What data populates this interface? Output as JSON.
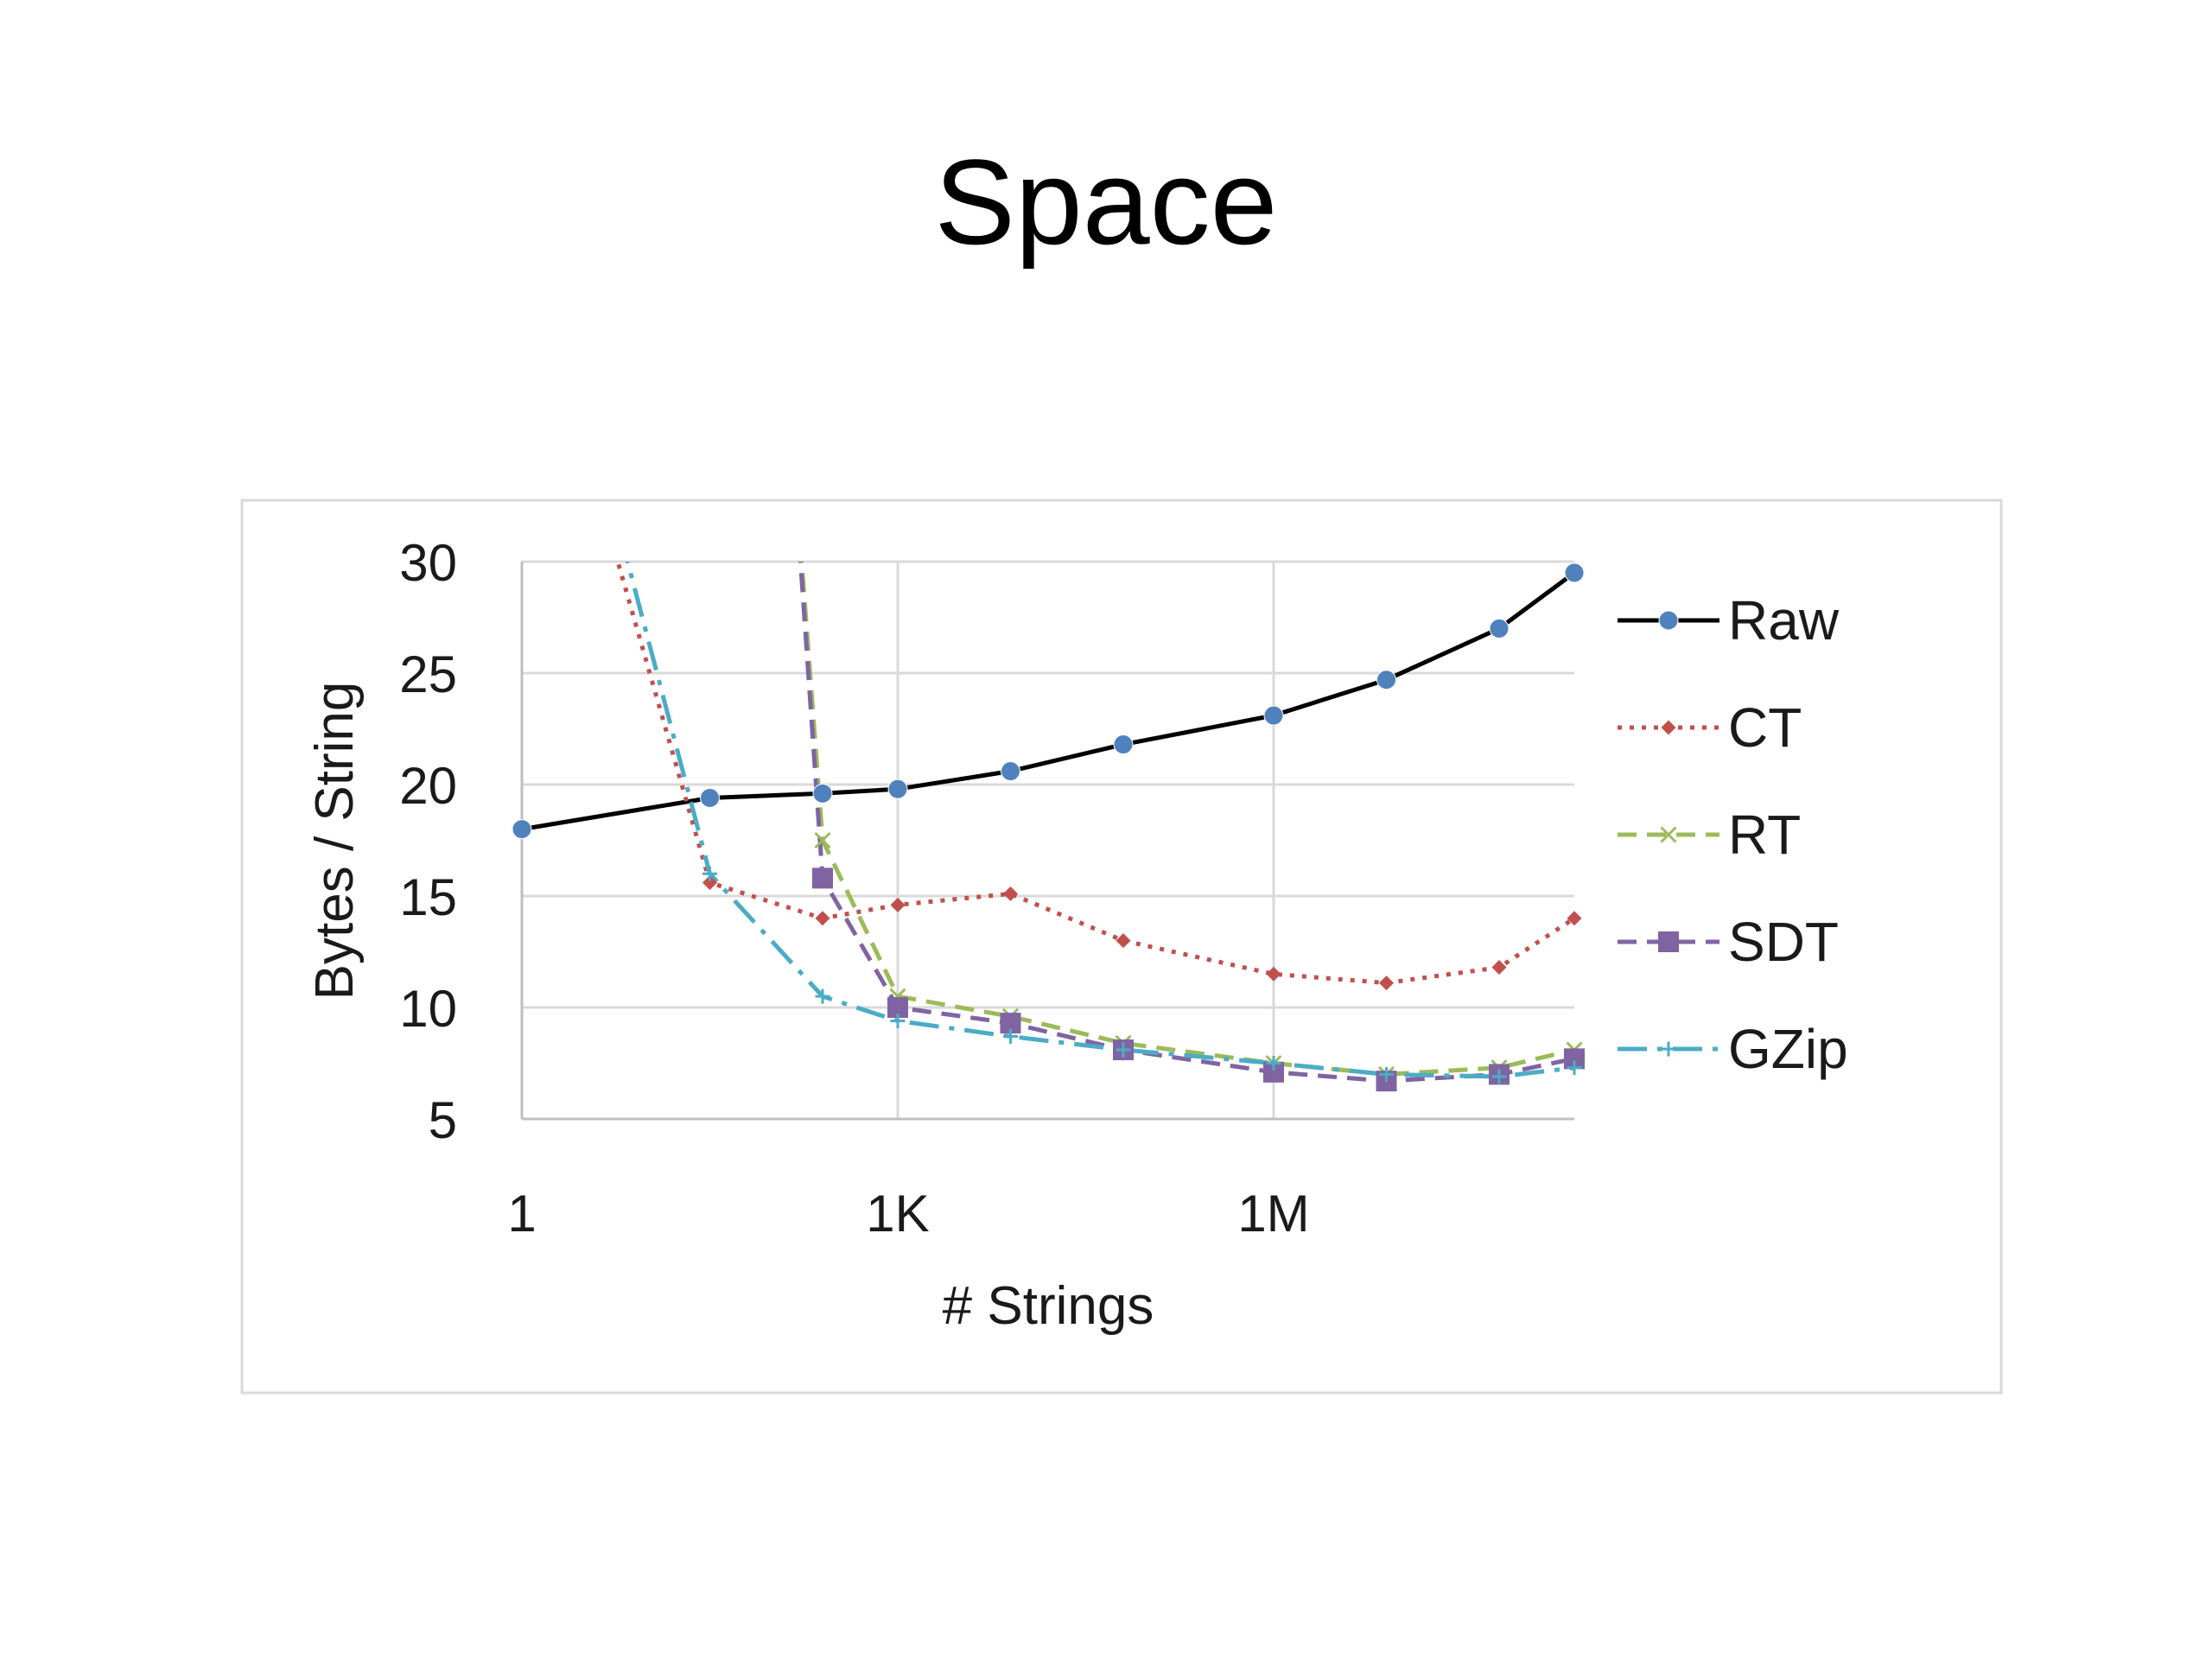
{
  "slide": {
    "title": "Space"
  },
  "chart_data": {
    "type": "line",
    "title": "",
    "xlabel": "# Strings",
    "ylabel": "Bytes / String",
    "x_scale": "log",
    "x": [
      1,
      32,
      256,
      1024,
      8192,
      65536,
      1048576,
      8388608,
      67108864,
      268435456
    ],
    "x_ticks": [
      {
        "value": 1,
        "label": "1"
      },
      {
        "value": 1024,
        "label": "1K"
      },
      {
        "value": 1048576,
        "label": "1M"
      }
    ],
    "xlim": [
      1,
      268435456
    ],
    "ylim": [
      5,
      30
    ],
    "y_ticks": [
      5,
      10,
      15,
      20,
      25,
      30
    ],
    "grid": true,
    "legend_position": "right",
    "series": [
      {
        "name": "Raw",
        "color": "#000000",
        "marker_color": "#4f81bd",
        "marker": "circle",
        "dash": "solid",
        "values": [
          18.0,
          19.4,
          19.6,
          19.8,
          20.6,
          21.8,
          23.1,
          24.7,
          27.0,
          29.5
        ]
      },
      {
        "name": "CT",
        "color": "#c0504d",
        "marker_color": "#c0504d",
        "marker": "diamond",
        "dash": "dotted",
        "values": [
          45.0,
          15.6,
          14.0,
          14.6,
          15.1,
          13.0,
          11.5,
          11.1,
          11.8,
          14.0
        ]
      },
      {
        "name": "RT",
        "color": "#9bbb59",
        "marker_color": "#9bbb59",
        "marker": "x",
        "dash": "dashed",
        "values": [
          null,
          null,
          17.5,
          10.5,
          9.6,
          8.4,
          7.5,
          7.0,
          7.3,
          8.1
        ]
      },
      {
        "name": "SDT",
        "color": "#8064a2",
        "marker_color": "#8064a2",
        "marker": "square",
        "dash": "dashed",
        "values": [
          null,
          null,
          15.8,
          10.0,
          9.3,
          8.1,
          7.1,
          6.7,
          7.0,
          7.7
        ]
      },
      {
        "name": "GZip",
        "color": "#4bacc6",
        "marker_color": "#4bacc6",
        "marker": "plus",
        "dash": "dashdot",
        "values": [
          48.0,
          16.0,
          10.5,
          9.4,
          8.7,
          8.1,
          7.5,
          7.0,
          6.9,
          7.3
        ]
      }
    ],
    "offscale_leadins": {
      "RT": {
        "x": 128,
        "y": 40
      },
      "SDT": {
        "x": 128,
        "y": 40
      }
    }
  }
}
